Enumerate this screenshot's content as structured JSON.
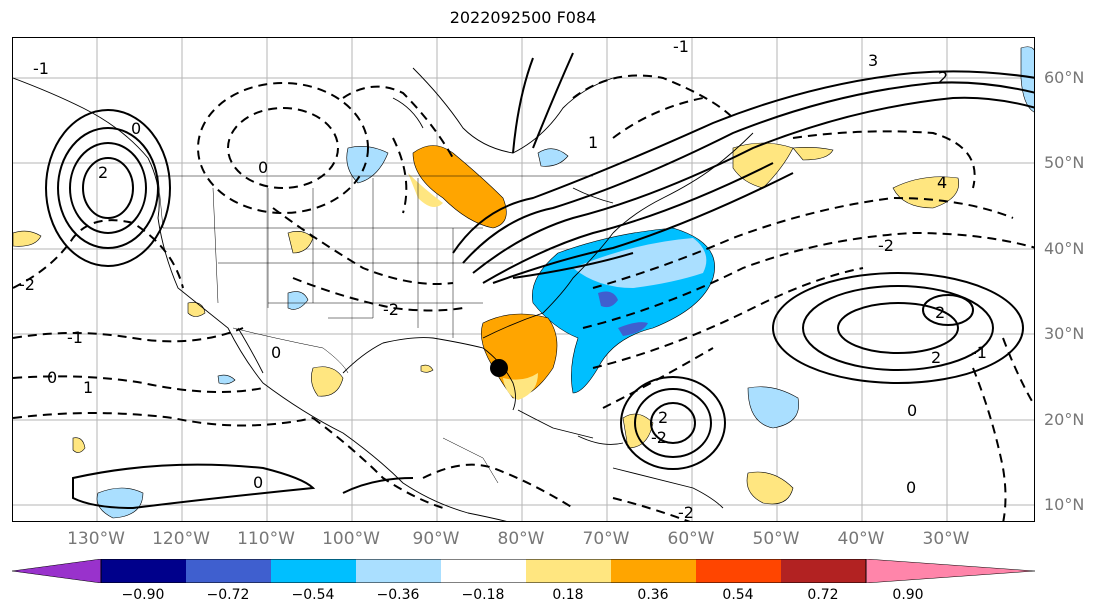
{
  "title": "2022092500 F084",
  "lat_labels": [
    "60°N",
    "50°N",
    "40°N",
    "30°N",
    "20°N",
    "10°N"
  ],
  "lon_labels": [
    "130°W",
    "120°W",
    "110°W",
    "100°W",
    "90°W",
    "80°W",
    "70°W",
    "60°W",
    "50°W",
    "40°W",
    "30°W"
  ],
  "colorbar": {
    "ticks": [
      "−0.90",
      "−0.72",
      "−0.54",
      "−0.36",
      "−0.18",
      "0.18",
      "0.36",
      "0.54",
      "0.72",
      "0.90"
    ],
    "colors": [
      "#9932cc",
      "#00008b",
      "#3f5fcf",
      "#00bfff",
      "#aadfff",
      "#ffffff",
      "#ffe680",
      "#ffa500",
      "#ff4500",
      "#b22222",
      "#ff85aa"
    ]
  },
  "contour_labels": [
    "2",
    "0",
    "-2",
    "-1",
    "1",
    "3",
    "4",
    "-2",
    "-2",
    "2",
    "0",
    "0",
    "-1",
    "2",
    "0",
    "-2",
    "2",
    "-1",
    "0",
    "1",
    "0",
    "-2",
    "2",
    "-1",
    "0"
  ],
  "marker": "storm-position"
}
